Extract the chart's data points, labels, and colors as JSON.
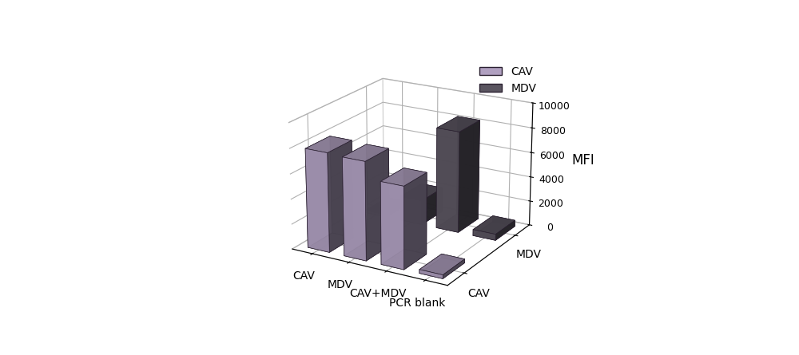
{
  "groups": [
    "CAV",
    "MDV",
    "CAV+MDV",
    "PCR blank"
  ],
  "series": [
    "CAV",
    "MDV"
  ],
  "values": {
    "CAV": [
      7900,
      7800,
      6500,
      300
    ],
    "MDV": [
      200,
      2000,
      8200,
      500
    ]
  },
  "bar_color_CAV": "#b0a0c0",
  "bar_color_MDV": "#5a5560",
  "edge_color": "#2a2030",
  "ylabel": "MFI",
  "ylim": [
    0,
    10000
  ],
  "yticks": [
    0,
    2000,
    4000,
    6000,
    8000,
    10000
  ],
  "legend_labels": [
    "CAV",
    "MDV"
  ],
  "background_color": "#ffffff",
  "grid_color": "#cccccc"
}
